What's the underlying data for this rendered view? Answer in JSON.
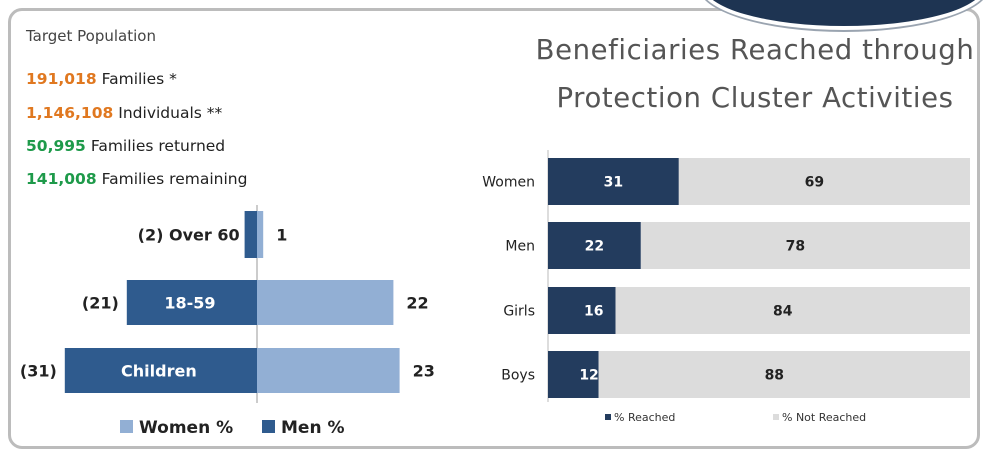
{
  "target_population": {
    "title": "Target Population",
    "stats": [
      {
        "number": "191,018",
        "label": "Families *",
        "color": "#e07820"
      },
      {
        "number": "1,146,108",
        "label": "Individuals **",
        "color": "#e07820"
      },
      {
        "number": "50,995",
        "label": "Families returned",
        "color": "#1e9a4a"
      },
      {
        "number": "141,008",
        "label": "Families remaining",
        "color": "#1e9a4a"
      }
    ]
  },
  "main_title_lines": [
    "Beneficiaries Reached through",
    "Protection Cluster Activities"
  ],
  "colors": {
    "women": "#92afd4",
    "men": "#2f5b8e",
    "reached": "#233c5e",
    "not_reached": "#dcdcdc"
  },
  "chart_data": [
    {
      "type": "bar",
      "orientation": "horizontal",
      "layout": "population-pyramid",
      "categories": [
        "Over 60",
        "18-59",
        "Children"
      ],
      "series": [
        {
          "name": "Men %",
          "values": [
            2,
            21,
            31
          ],
          "labels": [
            "(2)",
            "(21)",
            "(31)"
          ]
        },
        {
          "name": "Women %",
          "values": [
            1,
            22,
            23
          ],
          "labels": [
            "1",
            "22",
            "23"
          ]
        }
      ],
      "legend": [
        "Women %",
        "Men %"
      ]
    },
    {
      "type": "bar",
      "orientation": "horizontal",
      "stacked": true,
      "categories": [
        "Women",
        "Men",
        "Girls",
        "Boys"
      ],
      "series": [
        {
          "name": "% Reached",
          "values": [
            31,
            22,
            16,
            12
          ]
        },
        {
          "name": "% Not Reached",
          "values": [
            69,
            78,
            84,
            88
          ]
        }
      ],
      "xlim": [
        0,
        100
      ],
      "title": "Beneficiaries Reached through Protection Cluster Activities",
      "legend_placement": "bottom"
    }
  ]
}
